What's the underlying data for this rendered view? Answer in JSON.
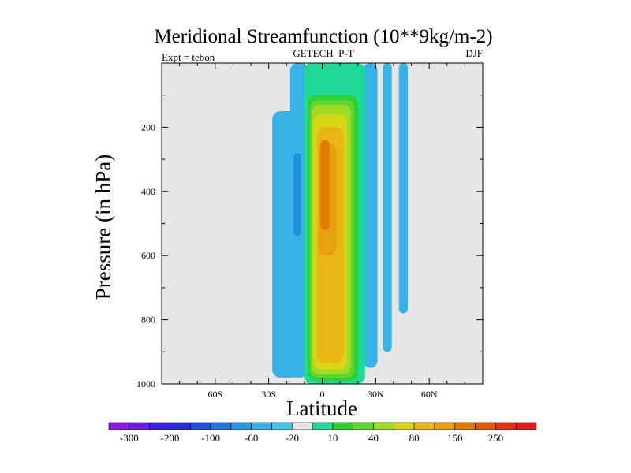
{
  "chart_data": {
    "type": "contour",
    "title": "Meridional Streamfunction (10**9kg/m-2)",
    "left_string": "Expt = tebon",
    "center_string": "GETECH_P-T",
    "right_string": "DJF",
    "xlabel": "Latitude",
    "ylabel": "Pressure (in hPa)",
    "xlim": [
      -90,
      90
    ],
    "ylim": [
      1000,
      0
    ],
    "x_major_ticks": [
      -60,
      -30,
      0,
      30,
      60
    ],
    "x_tick_labels": [
      "60S",
      "30S",
      "0",
      "30N",
      "60N"
    ],
    "x_minor_ticks": [
      -90,
      -80,
      -70,
      -50,
      -40,
      -20,
      -10,
      10,
      20,
      40,
      50,
      70,
      80,
      90
    ],
    "y_major_ticks": [
      200,
      400,
      600,
      800,
      1000
    ],
    "y_tick_labels": [
      "200",
      "400",
      "600",
      "800",
      "1000"
    ],
    "y_minor_ticks": [
      100,
      300,
      500,
      700,
      900
    ],
    "background_color": "#e6e6e6",
    "contour_levels": [
      {
        "lat_range": [
          -28,
          -12
        ],
        "p_range": [
          150,
          980
        ],
        "color": "#38b2e6"
      },
      {
        "lat_range": [
          -18,
          -8
        ],
        "p_range": [
          0,
          980
        ],
        "color": "#38b2e6"
      },
      {
        "lat_range": [
          -16,
          -12
        ],
        "p_range": [
          280,
          540
        ],
        "color": "#1f8fdc"
      },
      {
        "lat_range": [
          23,
          31
        ],
        "p_range": [
          0,
          950
        ],
        "color": "#38b2e6"
      },
      {
        "lat_range": [
          34,
          39
        ],
        "p_range": [
          0,
          900
        ],
        "color": "#38b2e6"
      },
      {
        "lat_range": [
          43,
          48
        ],
        "p_range": [
          0,
          780
        ],
        "color": "#38b2e6"
      },
      {
        "lat_range": [
          -10,
          24
        ],
        "p_range": [
          0,
          1000
        ],
        "color": "#1fd996"
      },
      {
        "lat_range": [
          -8,
          20
        ],
        "p_range": [
          100,
          990
        ],
        "color": "#2fcf2f"
      },
      {
        "lat_range": [
          -7,
          18
        ],
        "p_range": [
          115,
          980
        ],
        "color": "#5fd62f"
      },
      {
        "lat_range": [
          -6,
          16
        ],
        "p_range": [
          130,
          970
        ],
        "color": "#9fdb24"
      },
      {
        "lat_range": [
          -5,
          14
        ],
        "p_range": [
          160,
          955
        ],
        "color": "#d8d515"
      },
      {
        "lat_range": [
          -3,
          12
        ],
        "p_range": [
          200,
          935
        ],
        "color": "#e8b716"
      },
      {
        "lat_range": [
          -2,
          8
        ],
        "p_range": [
          250,
          600
        ],
        "color": "#e8a10f"
      },
      {
        "lat_range": [
          -1,
          4
        ],
        "p_range": [
          240,
          520
        ],
        "color": "#e07a00"
      }
    ],
    "colorbar": {
      "labels": [
        "-300",
        "-200",
        "-100",
        "-60",
        "-20",
        "10",
        "40",
        "80",
        "150",
        "250"
      ],
      "label_boxes": [
        1,
        3,
        5,
        7,
        9,
        11,
        13,
        15,
        17,
        19
      ],
      "colors": [
        "#8a1be0",
        "#6a1ee6",
        "#3c1fe6",
        "#2a2ad8",
        "#2350d8",
        "#2375dc",
        "#2a98e0",
        "#38b2e6",
        "#3fc4ea",
        "#e6e6e6",
        "#1fd996",
        "#2fcf2f",
        "#5fd62f",
        "#9fdb24",
        "#d8d515",
        "#e8b716",
        "#e8a10f",
        "#e07a00",
        "#e05a0a",
        "#e83010",
        "#e31a1a"
      ]
    }
  }
}
